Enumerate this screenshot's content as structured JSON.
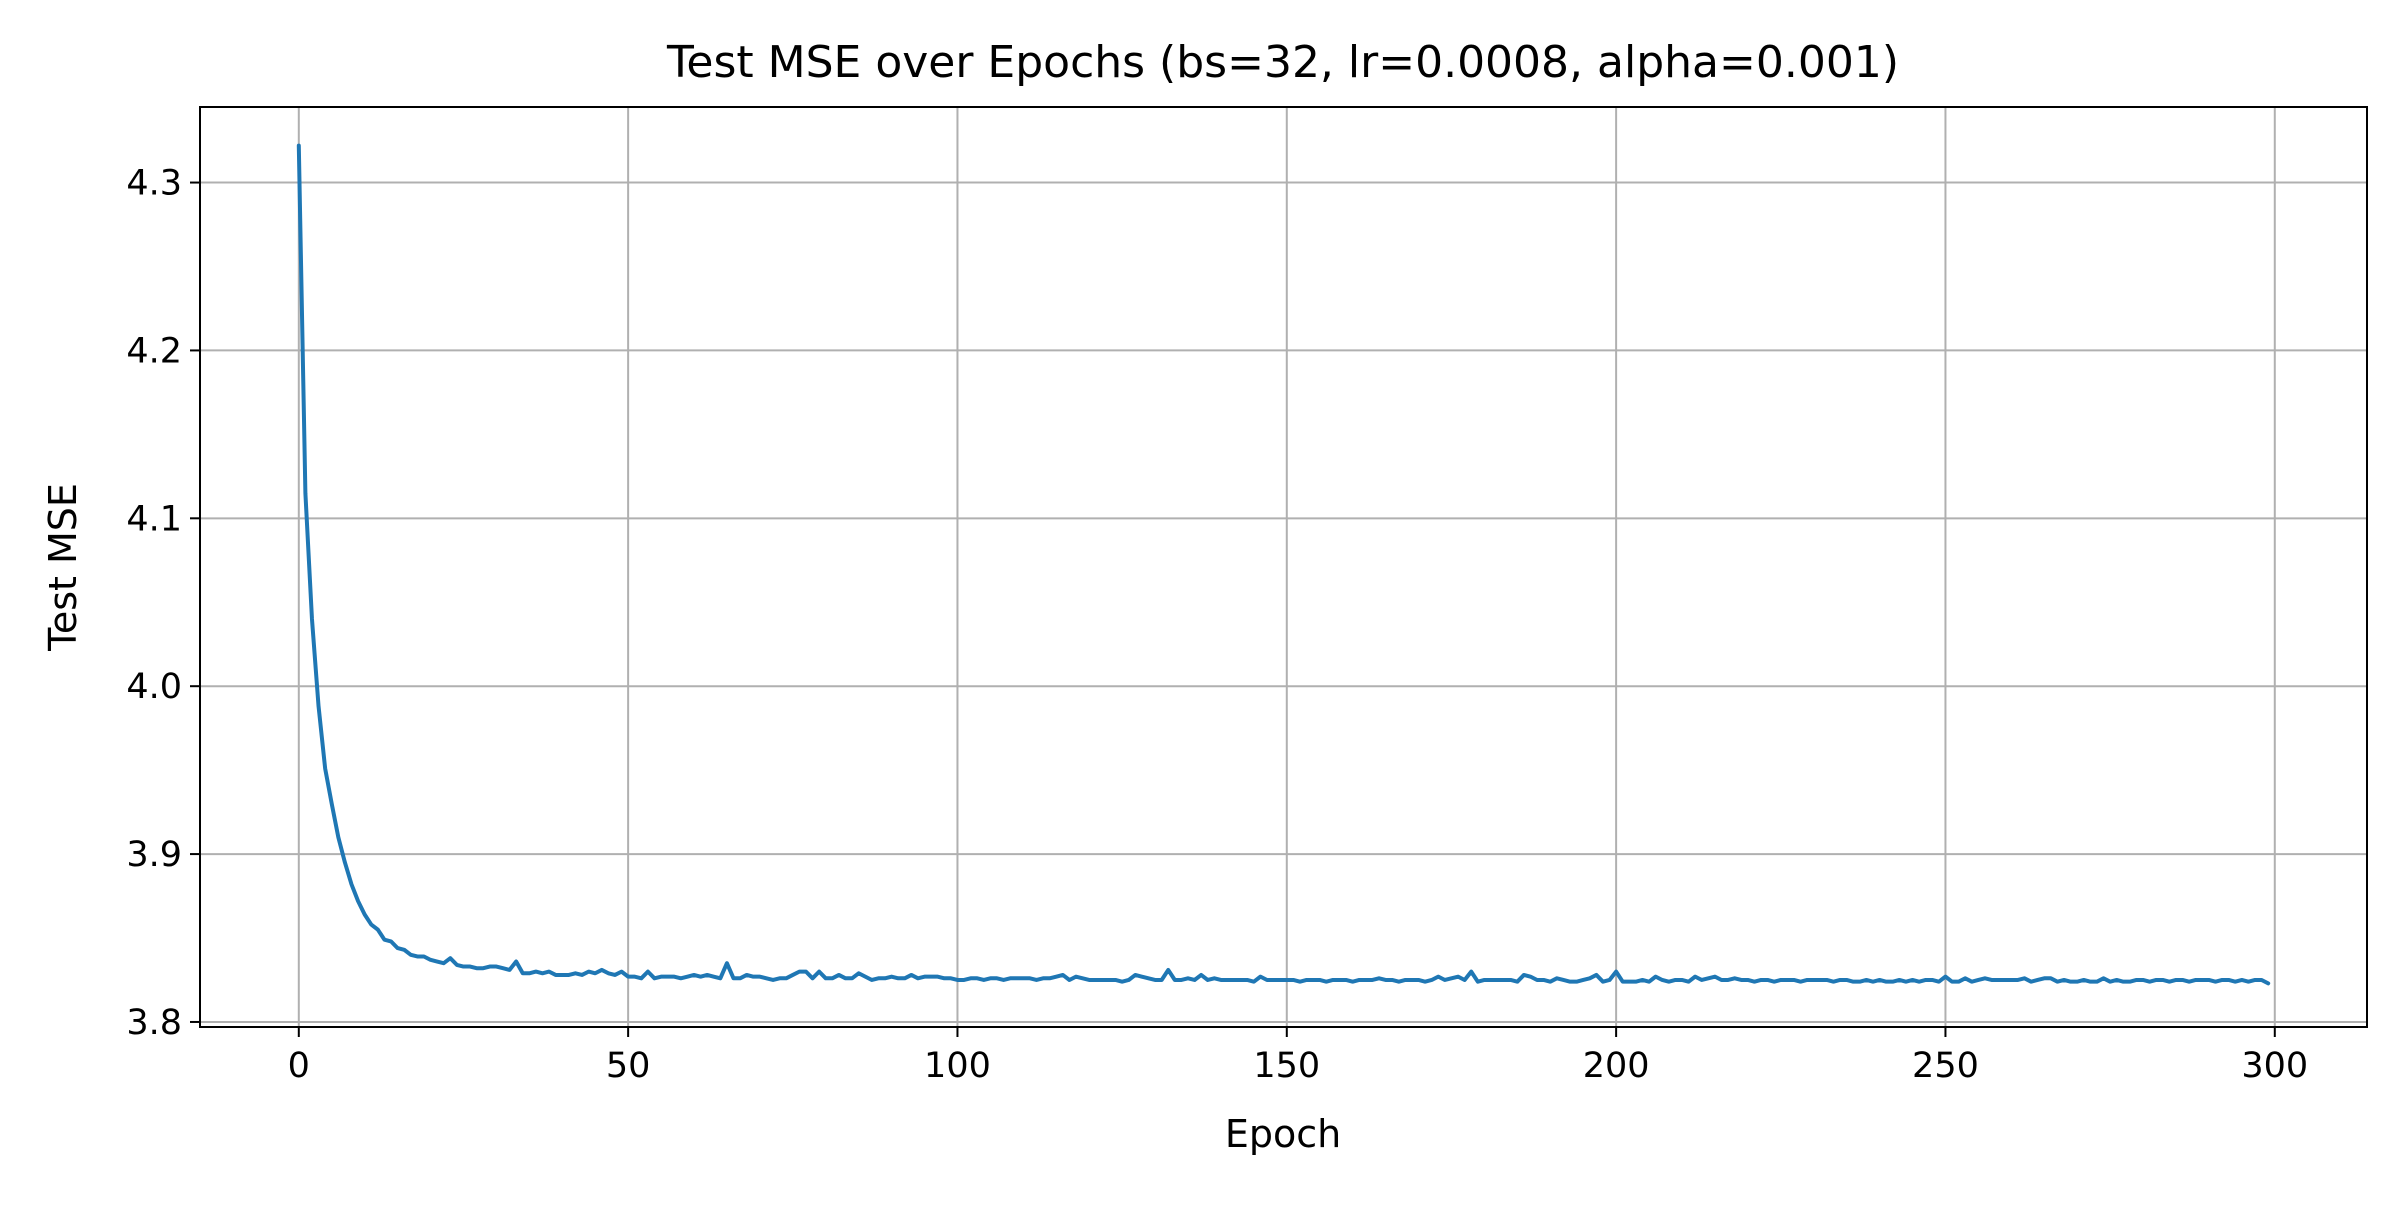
{
  "chart_data": {
    "type": "line",
    "title": "Test MSE over Epochs (bs=32, lr=0.0008, alpha=0.001)",
    "xlabel": "Epoch",
    "ylabel": "Test MSE",
    "xlim": [
      -15,
      314
    ],
    "ylim": [
      3.797,
      4.345
    ],
    "xticks": [
      0,
      50,
      100,
      150,
      200,
      250,
      300
    ],
    "yticks": [
      3.8,
      3.9,
      4.0,
      4.1,
      4.2,
      4.3
    ],
    "xtick_labels": [
      "0",
      "50",
      "100",
      "150",
      "200",
      "250",
      "300"
    ],
    "ytick_labels": [
      "3.8",
      "3.9",
      "4.0",
      "4.1",
      "4.2",
      "4.3"
    ],
    "grid": true,
    "legend": "none",
    "series": [
      {
        "color": "#1f77b4",
        "x_start": 0,
        "x_step": 1,
        "values": [
          4.322,
          4.115,
          4.04,
          3.988,
          3.951,
          3.93,
          3.91,
          3.895,
          3.882,
          3.872,
          3.864,
          3.858,
          3.855,
          3.849,
          3.848,
          3.844,
          3.843,
          3.84,
          3.839,
          3.839,
          3.837,
          3.836,
          3.835,
          3.838,
          3.834,
          3.833,
          3.833,
          3.832,
          3.832,
          3.833,
          3.833,
          3.832,
          3.831,
          3.836,
          3.829,
          3.829,
          3.83,
          3.829,
          3.83,
          3.828,
          3.828,
          3.828,
          3.829,
          3.828,
          3.83,
          3.829,
          3.831,
          3.829,
          3.828,
          3.83,
          3.827,
          3.827,
          3.826,
          3.83,
          3.826,
          3.827,
          3.827,
          3.827,
          3.826,
          3.827,
          3.828,
          3.827,
          3.828,
          3.827,
          3.826,
          3.835,
          3.826,
          3.826,
          3.828,
          3.827,
          3.827,
          3.826,
          3.825,
          3.826,
          3.826,
          3.828,
          3.83,
          3.83,
          3.826,
          3.83,
          3.826,
          3.826,
          3.828,
          3.826,
          3.826,
          3.829,
          3.827,
          3.825,
          3.826,
          3.826,
          3.827,
          3.826,
          3.826,
          3.828,
          3.826,
          3.827,
          3.827,
          3.827,
          3.826,
          3.826,
          3.825,
          3.825,
          3.826,
          3.826,
          3.825,
          3.826,
          3.826,
          3.825,
          3.826,
          3.826,
          3.826,
          3.826,
          3.825,
          3.826,
          3.826,
          3.827,
          3.828,
          3.825,
          3.827,
          3.826,
          3.825,
          3.825,
          3.825,
          3.825,
          3.825,
          3.824,
          3.825,
          3.828,
          3.827,
          3.826,
          3.825,
          3.825,
          3.831,
          3.825,
          3.825,
          3.826,
          3.825,
          3.828,
          3.825,
          3.826,
          3.825,
          3.825,
          3.825,
          3.825,
          3.825,
          3.824,
          3.827,
          3.825,
          3.825,
          3.825,
          3.825,
          3.825,
          3.824,
          3.825,
          3.825,
          3.825,
          3.824,
          3.825,
          3.825,
          3.825,
          3.824,
          3.825,
          3.825,
          3.825,
          3.826,
          3.825,
          3.825,
          3.824,
          3.825,
          3.825,
          3.825,
          3.824,
          3.825,
          3.827,
          3.825,
          3.826,
          3.827,
          3.825,
          3.83,
          3.824,
          3.825,
          3.825,
          3.825,
          3.825,
          3.825,
          3.824,
          3.828,
          3.827,
          3.825,
          3.825,
          3.824,
          3.826,
          3.825,
          3.824,
          3.824,
          3.825,
          3.826,
          3.828,
          3.824,
          3.825,
          3.83,
          3.824,
          3.824,
          3.824,
          3.825,
          3.824,
          3.827,
          3.825,
          3.824,
          3.825,
          3.825,
          3.824,
          3.827,
          3.825,
          3.826,
          3.827,
          3.825,
          3.825,
          3.826,
          3.825,
          3.825,
          3.824,
          3.825,
          3.825,
          3.824,
          3.825,
          3.825,
          3.825,
          3.824,
          3.825,
          3.825,
          3.825,
          3.825,
          3.824,
          3.825,
          3.825,
          3.824,
          3.824,
          3.825,
          3.824,
          3.825,
          3.824,
          3.824,
          3.825,
          3.824,
          3.825,
          3.824,
          3.825,
          3.825,
          3.824,
          3.827,
          3.824,
          3.824,
          3.826,
          3.824,
          3.825,
          3.826,
          3.825,
          3.825,
          3.825,
          3.825,
          3.825,
          3.826,
          3.824,
          3.825,
          3.826,
          3.826,
          3.824,
          3.825,
          3.824,
          3.824,
          3.825,
          3.824,
          3.824,
          3.826,
          3.824,
          3.825,
          3.824,
          3.824,
          3.825,
          3.825,
          3.824,
          3.825,
          3.825,
          3.824,
          3.825,
          3.825,
          3.824,
          3.825,
          3.825,
          3.825,
          3.824,
          3.825,
          3.825,
          3.824,
          3.825,
          3.824,
          3.825,
          3.825,
          3.823
        ]
      }
    ]
  }
}
